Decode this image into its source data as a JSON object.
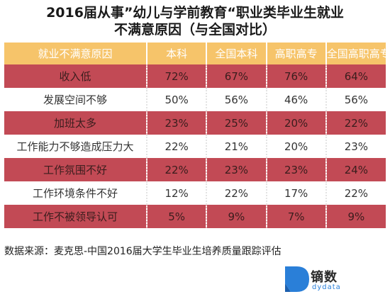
{
  "title_line1": "2016届从事”幼儿与学前教育“职业类毕业生就业",
  "title_line2": "不满意原因（与全国对比）",
  "chart_data": {
    "type": "table",
    "columns": [
      "就业不满意原因",
      "本科",
      "全国本科",
      "高职高专",
      "全国高职高专"
    ],
    "rows": [
      [
        "收入低",
        "72%",
        "67%",
        "76%",
        "64%"
      ],
      [
        "发展空间不够",
        "50%",
        "56%",
        "46%",
        "56%"
      ],
      [
        "加班太多",
        "23%",
        "25%",
        "20%",
        "22%"
      ],
      [
        "工作能力不够造成压力大",
        "22%",
        "21%",
        "20%",
        "23%"
      ],
      [
        "工作氛围不好",
        "22%",
        "23%",
        "23%",
        "24%"
      ],
      [
        "工作环境条件不好",
        "12%",
        "22%",
        "17%",
        "22%"
      ],
      [
        "工作不被领导认可",
        "5%",
        "9%",
        "7%",
        "9%"
      ]
    ]
  },
  "source": "数据来源：麦克思-中国2016届大学生毕业生培养质量跟踪评估",
  "logo": {
    "name": "镝数",
    "sub": "dydata",
    "icon": "dydata-logo-icon",
    "color": "#2a7fd8"
  }
}
